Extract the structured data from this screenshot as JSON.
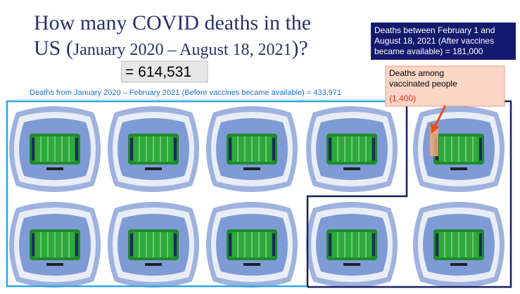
{
  "slide": {
    "title": {
      "line1": "How many COVID deaths in the",
      "line2_start": "US (",
      "line2_range": "January 2020 – August 18, 2021",
      "line2_end": ")?"
    },
    "total": "= 614,531",
    "before_caption": "Deaths from January 2020 – February 2021 (Before vaccines became available) = 433,971",
    "after_box": [
      "Deaths between February 1 and",
      "August 18, 2021 (After vaccines",
      "became available) = 181,000"
    ],
    "vaccinated_box": {
      "lines": [
        "Deaths among",
        "vaccinated people"
      ],
      "count": "(1,400)"
    }
  }
}
